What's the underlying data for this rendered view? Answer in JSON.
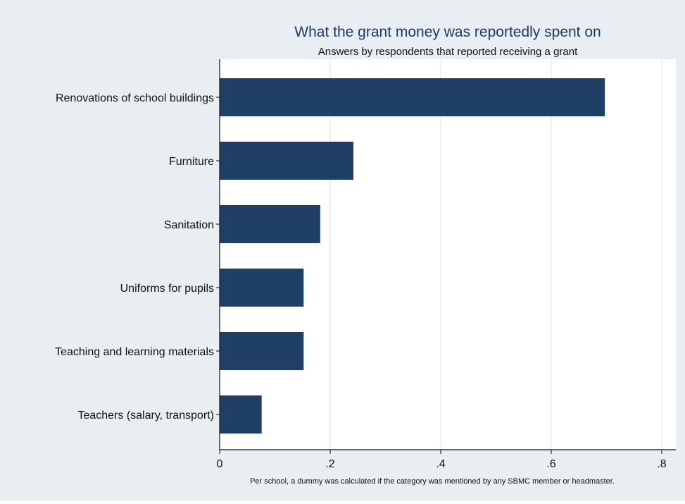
{
  "chart_data": {
    "type": "bar",
    "orientation": "horizontal",
    "title": "What the grant money was reportedly spent on",
    "subtitle": "Answers by respondents that reported receiving a grant",
    "note": "Per school, a dummy was calculated if the category was mentioned by any SBMC member or headmaster.",
    "categories": [
      "Renovations of school buildings",
      "Furniture",
      "Sanitation",
      "Uniforms for pupils",
      "Teaching and learning materials",
      "Teachers (salary, transport)"
    ],
    "values": [
      0.697,
      0.242,
      0.182,
      0.152,
      0.152,
      0.076
    ],
    "xlim": [
      0,
      0.8
    ],
    "xticks": [
      0,
      0.2,
      0.4,
      0.6,
      0.8
    ],
    "xtick_labels": [
      "0",
      ".2",
      ".4",
      ".6",
      ".8"
    ],
    "grid": true,
    "bar_color": "#1f3f66",
    "title_color": "#1a3a6a",
    "frame_background": "#e9eef2",
    "plot_background": "#ffffff"
  }
}
